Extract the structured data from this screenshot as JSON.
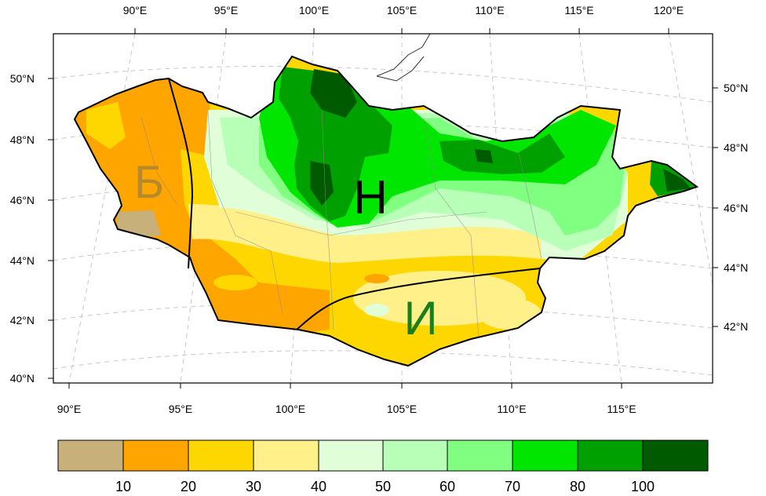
{
  "map": {
    "top_lon_labels": [
      "90°E",
      "95°E",
      "100°E",
      "105°E",
      "110°E",
      "115°E",
      "120°E"
    ],
    "bottom_lon_labels": [
      "90°E",
      "95°E",
      "100°E",
      "105°E",
      "110°E",
      "115°E"
    ],
    "left_lat_labels": [
      "50°N",
      "48°N",
      "46°N",
      "44°N",
      "42°N",
      "40°N"
    ],
    "right_lat_labels": [
      "50°N",
      "48°N",
      "46°N",
      "44°N",
      "42°N"
    ],
    "region_labels": [
      {
        "text": "Б",
        "color": "#b8892a"
      },
      {
        "text": "Н",
        "color": "#000000"
      },
      {
        "text": "И",
        "color": "#1a7f1a"
      }
    ],
    "colorbar": {
      "colors": [
        "#c8b07a",
        "#ffa500",
        "#ffd700",
        "#fff08a",
        "#e0ffd8",
        "#b8ffb8",
        "#80ff80",
        "#00e600",
        "#00a000",
        "#005a00"
      ],
      "labels": [
        "10",
        "20",
        "30",
        "40",
        "50",
        "60",
        "70",
        "80",
        "100"
      ]
    }
  }
}
